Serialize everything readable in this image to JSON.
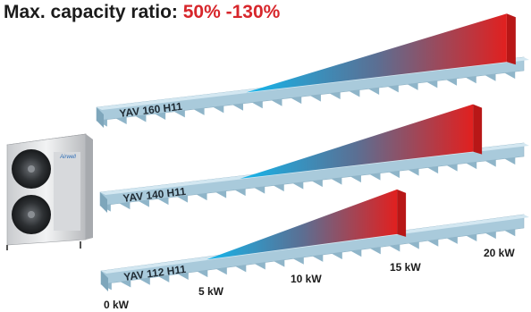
{
  "title": {
    "prefix": "Max. capacity ratio:",
    "ratio": "50% -130%"
  },
  "unit": {
    "logo": "Airwell"
  },
  "scale": {
    "ticks": [
      {
        "value": 0,
        "label": "0 kW"
      },
      {
        "value": 5,
        "label": "5 kW"
      },
      {
        "value": 10,
        "label": "10 kW"
      },
      {
        "value": 15,
        "label": "15 kW"
      },
      {
        "value": 20,
        "label": "20 kW"
      }
    ]
  },
  "models": [
    {
      "name": "YAV 160 H11"
    },
    {
      "name": "YAV 140 H11"
    },
    {
      "name": "YAV 112 H11"
    }
  ],
  "colors": {
    "ratio_text": "#d7262b",
    "range_low": "#13b6ec",
    "range_high": "#e1201f",
    "beam": "#b3d3e3"
  }
}
